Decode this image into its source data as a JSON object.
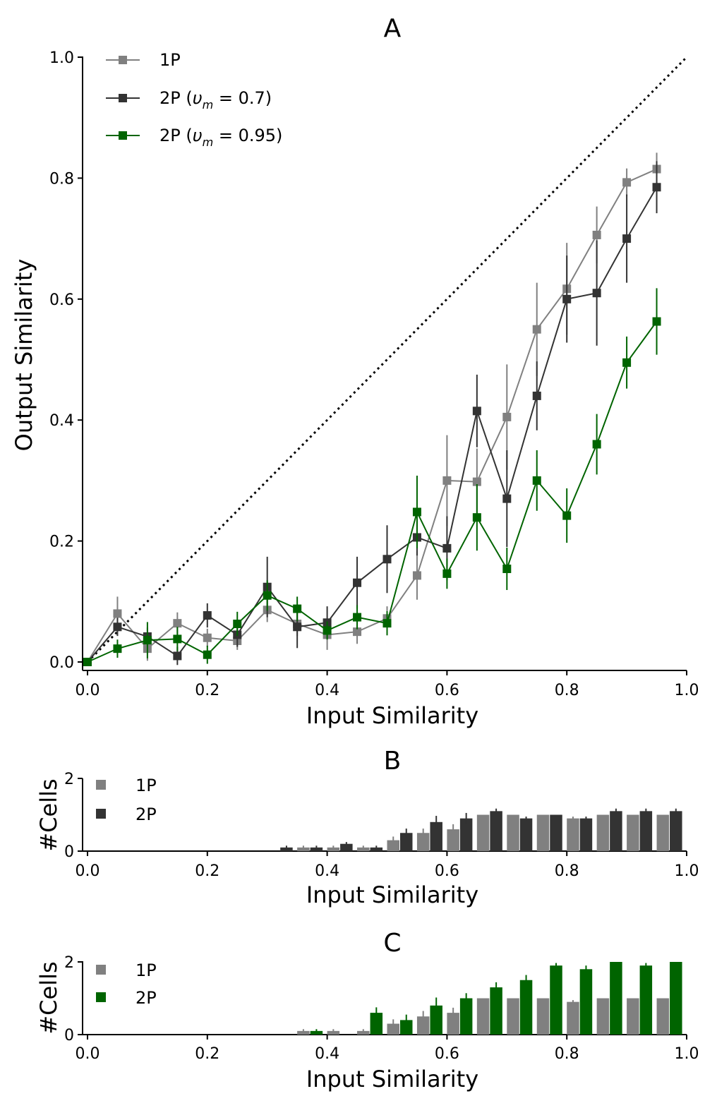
{
  "chart_data": [
    {
      "panel": "A",
      "type": "line",
      "title": "A",
      "xlabel": "Input Similarity",
      "ylabel": "Output Similarity",
      "xlim": [
        0,
        1
      ],
      "ylim": [
        0,
        1
      ],
      "xticks": [
        "0.0",
        "0.2",
        "0.4",
        "0.6",
        "0.8",
        "1.0"
      ],
      "yticks": [
        "0.0",
        "0.2",
        "0.4",
        "0.6",
        "0.8",
        "1.0"
      ],
      "reference_line": "identity (dotted, y = x)",
      "legend_position": "top-left",
      "x": [
        0.0,
        0.05,
        0.1,
        0.15,
        0.2,
        0.25,
        0.3,
        0.35,
        0.4,
        0.45,
        0.5,
        0.55,
        0.6,
        0.65,
        0.7,
        0.75,
        0.8,
        0.85,
        0.9,
        0.95
      ],
      "series": [
        {
          "name": "1P",
          "color": "#808080",
          "values": [
            0.0,
            0.08,
            0.022,
            0.064,
            0.04,
            0.035,
            0.086,
            0.063,
            0.045,
            0.05,
            0.072,
            0.143,
            0.3,
            0.298,
            0.405,
            0.55,
            0.617,
            0.706,
            0.793,
            0.815
          ],
          "errors": [
            0.0,
            0.028,
            0.02,
            0.018,
            0.015,
            0.015,
            0.02,
            0.02,
            0.025,
            0.02,
            0.02,
            0.04,
            0.075,
            0.055,
            0.087,
            0.077,
            0.076,
            0.047,
            0.023,
            0.027
          ]
        },
        {
          "name": "2P (υ_m = 0.7)",
          "legend_main": "2P (",
          "legend_sym": "υ",
          "legend_sub": "m",
          "legend_tail": " = 0.7)",
          "color": "#333333",
          "values": [
            0.0,
            0.058,
            0.042,
            0.01,
            0.077,
            0.045,
            0.124,
            0.058,
            0.065,
            0.131,
            0.17,
            0.206,
            0.188,
            0.415,
            0.27,
            0.44,
            0.6,
            0.61,
            0.7,
            0.785
          ],
          "errors": [
            0.0,
            0.015,
            0.015,
            0.015,
            0.02,
            0.02,
            0.05,
            0.035,
            0.027,
            0.043,
            0.056,
            0.03,
            0.053,
            0.06,
            0.08,
            0.057,
            0.072,
            0.087,
            0.073,
            0.043
          ]
        },
        {
          "name": "2P (υ_m = 0.95)",
          "legend_main": "2P (",
          "legend_sym": "υ",
          "legend_sub": "m",
          "legend_tail": " = 0.95)",
          "color": "#006400",
          "values": [
            0.0,
            0.022,
            0.036,
            0.038,
            0.012,
            0.063,
            0.11,
            0.088,
            0.052,
            0.074,
            0.064,
            0.248,
            0.146,
            0.239,
            0.154,
            0.3,
            0.242,
            0.36,
            0.495,
            0.563
          ],
          "errors": [
            0.0,
            0.015,
            0.03,
            0.02,
            0.015,
            0.02,
            0.025,
            0.02,
            0.015,
            0.02,
            0.02,
            0.06,
            0.025,
            0.055,
            0.035,
            0.05,
            0.045,
            0.05,
            0.043,
            0.055
          ]
        }
      ]
    },
    {
      "panel": "B",
      "type": "bar",
      "title": "B",
      "xlabel": "Input Similarity",
      "ylabel": "#Cells",
      "xlim": [
        0,
        1
      ],
      "ylim": [
        0,
        2
      ],
      "xticks": [
        "0.0",
        "0.2",
        "0.4",
        "0.6",
        "0.8",
        "1.0"
      ],
      "yticks": [
        "0",
        "2"
      ],
      "legend_position": "top-left",
      "categories": [
        0.3,
        0.35,
        0.4,
        0.45,
        0.5,
        0.55,
        0.6,
        0.65,
        0.7,
        0.75,
        0.8,
        0.85,
        0.9,
        0.95
      ],
      "series": [
        {
          "name": "1P",
          "color": "#808080",
          "values": [
            0.0,
            0.1,
            0.1,
            0.1,
            0.3,
            0.5,
            0.6,
            1.0,
            1.0,
            1.0,
            0.9,
            1.0,
            1.0,
            1.0
          ],
          "errors": [
            0.0,
            0.05,
            0.05,
            0.05,
            0.1,
            0.12,
            0.14,
            0.0,
            0.0,
            0.0,
            0.05,
            0.0,
            0.0,
            0.0
          ]
        },
        {
          "name": "2P",
          "color": "#333333",
          "values": [
            0.1,
            0.1,
            0.2,
            0.1,
            0.5,
            0.8,
            0.9,
            1.1,
            0.9,
            1.0,
            0.9,
            1.1,
            1.1,
            1.1
          ],
          "errors": [
            0.05,
            0.05,
            0.05,
            0.05,
            0.12,
            0.17,
            0.15,
            0.07,
            0.05,
            0.0,
            0.05,
            0.07,
            0.07,
            0.07
          ]
        }
      ]
    },
    {
      "panel": "C",
      "type": "bar",
      "title": "C",
      "xlabel": "Input Similarity",
      "ylabel": "#Cells",
      "xlim": [
        0,
        1
      ],
      "ylim": [
        0,
        2
      ],
      "xticks": [
        "0.0",
        "0.2",
        "0.4",
        "0.6",
        "0.8",
        "1.0"
      ],
      "yticks": [
        "0",
        "2"
      ],
      "legend_position": "top-left",
      "categories": [
        0.35,
        0.4,
        0.45,
        0.5,
        0.55,
        0.6,
        0.65,
        0.7,
        0.75,
        0.8,
        0.85,
        0.9,
        0.95
      ],
      "series": [
        {
          "name": "1P",
          "color": "#808080",
          "values": [
            0.1,
            0.1,
            0.1,
            0.3,
            0.5,
            0.6,
            1.0,
            1.0,
            1.0,
            0.9,
            1.0,
            1.0,
            1.0
          ],
          "errors": [
            0.05,
            0.05,
            0.05,
            0.12,
            0.15,
            0.14,
            0.0,
            0.0,
            0.0,
            0.05,
            0.0,
            0.0,
            0.0
          ]
        },
        {
          "name": "2P",
          "color": "#006400",
          "values": [
            0.1,
            0.0,
            0.6,
            0.4,
            0.8,
            1.0,
            1.3,
            1.5,
            1.9,
            1.8,
            2.0,
            1.9,
            2.0
          ],
          "errors": [
            0.05,
            0.0,
            0.15,
            0.15,
            0.22,
            0.14,
            0.14,
            0.14,
            0.07,
            0.1,
            0.0,
            0.07,
            0.0
          ]
        }
      ]
    }
  ]
}
